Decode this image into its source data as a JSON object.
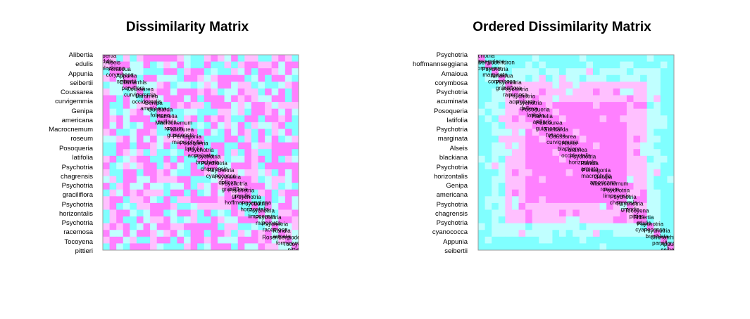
{
  "chart_data": [
    {
      "type": "heatmap",
      "title": "Dissimilarity Matrix",
      "row_labels": [
        [
          "Alibertia",
          "edulis"
        ],
        [
          "Appunia",
          "seibertii"
        ],
        [
          "Coussarea",
          "curvigemmia"
        ],
        [
          "Genipa",
          "americana"
        ],
        [
          "Macrocnemum",
          "roseum"
        ],
        [
          "Posoqueria",
          "latifolia"
        ],
        [
          "Psychotria",
          "chagrensis"
        ],
        [
          "Psychotria",
          "graciliflora"
        ],
        [
          "Psychotria",
          "horizontalis"
        ],
        [
          "Psychotria",
          "racemosa"
        ],
        [
          "Tocoyena",
          "pittieri"
        ]
      ],
      "diagonal_labels": [
        [
          "Alibertia",
          "edulis"
        ],
        [
          "Alseis",
          "blackiana"
        ],
        [
          "Amaioua",
          "corymbosa"
        ],
        [
          "Appunia",
          "seibertii"
        ],
        [
          "Chimarrhis",
          "parviflora"
        ],
        [
          "Coussarea",
          "curvigemmia"
        ],
        [
          "Faramea",
          "occidentalis"
        ],
        [
          "Genipa",
          "americana"
        ],
        [
          "Guettarda",
          "foliacea"
        ],
        [
          "Hamelia",
          "axillaris"
        ],
        [
          "Macrocnemum",
          "roseum"
        ],
        [
          "Palicourea",
          "guianensis"
        ],
        [
          "Pentagonia",
          "macrophylla"
        ],
        [
          "Posoqueria",
          "latifolia"
        ],
        [
          "Psychotria",
          "acuminata"
        ],
        [
          "Psychotria",
          "brachiata"
        ],
        [
          "Psychotria",
          "chagrensis"
        ],
        [
          "Psychotria",
          "cyanococca"
        ],
        [
          "Psychotria",
          "deflexa"
        ],
        [
          "Psychotria",
          "graciliflora"
        ],
        [
          "Psychotria",
          "grandis"
        ],
        [
          "Psychotria",
          "hoffmannseggiana"
        ],
        [
          "Psychotria",
          "horizontalis"
        ],
        [
          "Psychotria",
          "limonensis"
        ],
        [
          "Psychotria",
          "marginata"
        ],
        [
          "Psychotria",
          "racemosa"
        ],
        [
          "Randia",
          "armata"
        ],
        [
          "Rosenbergiodendron",
          "formosum"
        ],
        [
          "Tocoyena",
          "pittieri"
        ]
      ],
      "color_scale": [
        "#ff80ff",
        "#ffc0ff",
        "#c0ffff",
        "#80ffff"
      ]
    },
    {
      "type": "heatmap",
      "title": "Ordered Dissimilarity Matrix",
      "row_labels": [
        [
          "Psychotria",
          "hoffmannseggiana"
        ],
        [
          "Amaioua",
          "corymbosa"
        ],
        [
          "Psychotria",
          "acuminata"
        ],
        [
          "Posoqueria",
          "latifolia"
        ],
        [
          "Psychotria",
          "marginata"
        ],
        [
          "Alseis",
          "blackiana"
        ],
        [
          "Psychotria",
          "horizontalis"
        ],
        [
          "Genipa",
          "americana"
        ],
        [
          "Psychotria",
          "chagrensis"
        ],
        [
          "Psychotria",
          "cyanococca"
        ],
        [
          "Appunia",
          "seibertii"
        ]
      ],
      "diagonal_labels": [
        [
          "Psychotria",
          "hoffmannseggiana"
        ],
        [
          "Rosenbergiodendron",
          "formosum"
        ],
        [
          "Psychotria",
          "marginata"
        ],
        [
          "Amaioua",
          "corymbosa"
        ],
        [
          "Psychotria",
          "graciliflora"
        ],
        [
          "Psychotria",
          "racemosa"
        ],
        [
          "Psychotria",
          "acuminata"
        ],
        [
          "Psychotria",
          "deflexa"
        ],
        [
          "Posoqueria",
          "latifolia"
        ],
        [
          "Hamelia",
          "axillaris"
        ],
        [
          "Palicourea",
          "guianensis"
        ],
        [
          "Guettarda",
          "foliacea"
        ],
        [
          "Coussarea",
          "curvigemmia"
        ],
        [
          "Alseis",
          "blackiana"
        ],
        [
          "Faramea",
          "occidentalis"
        ],
        [
          "Psychotria",
          "horizontalis"
        ],
        [
          "Randia",
          "armata"
        ],
        [
          "Pentagonia",
          "macrophylla"
        ],
        [
          "Genipa",
          "americana"
        ],
        [
          "Macrocnemum",
          "roseum"
        ],
        [
          "Psychotria",
          "limonensis"
        ],
        [
          "Psychotria",
          "chagrensis"
        ],
        [
          "Psychotria",
          "grandis"
        ],
        [
          "Tocoyena",
          "pittieri"
        ],
        [
          "Alibertia",
          "edulis"
        ],
        [
          "Psychotria",
          "cyanococca"
        ],
        [
          "Psychotria",
          "brachiata"
        ],
        [
          "Chimarrhis",
          "parviflora"
        ],
        [
          "Appunia",
          "seibertii"
        ]
      ],
      "color_scale": [
        "#ff80ff",
        "#ffc0ff",
        "#c0ffff",
        "#80ffff"
      ]
    }
  ]
}
